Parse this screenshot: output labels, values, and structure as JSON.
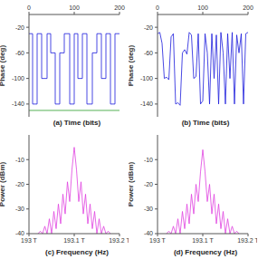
{
  "chart_data": [
    {
      "type": "step",
      "x_label": "(a) Time (bits)",
      "y_label": "Phase (deg)",
      "xlim": [
        0,
        200
      ],
      "xticks": [
        0,
        100,
        200
      ],
      "ylim": [
        -160,
        0
      ],
      "yticks": [
        -20,
        -60,
        -100,
        -140
      ],
      "x": [
        0,
        8,
        18,
        28,
        40,
        48,
        58,
        68,
        78,
        90,
        100,
        108,
        118,
        128,
        140,
        150,
        160,
        170,
        180,
        190,
        200
      ],
      "series": [
        {
          "color": "#1a1adc",
          "values": [
            -30,
            -140,
            -30,
            -100,
            -30,
            -60,
            -140,
            -60,
            -30,
            -140,
            -30,
            -100,
            -30,
            -140,
            -60,
            -30,
            -100,
            -30,
            -140,
            -30,
            -30
          ]
        },
        {
          "color": "#2a9d2a",
          "values": [
            -150,
            -150,
            -150,
            -150,
            -150,
            -150,
            -150,
            -150,
            -150,
            -150,
            -150,
            -150,
            -150,
            -150,
            -150,
            -150,
            -150,
            -150,
            -150,
            -150,
            -150
          ]
        }
      ]
    },
    {
      "type": "line",
      "x_label": "(b) Time (bits)",
      "y_label": "Phase (deg)",
      "xlim": [
        0,
        200
      ],
      "xticks": [
        0,
        100,
        200
      ],
      "ylim": [
        -160,
        0
      ],
      "yticks": [
        -20,
        -60,
        -100,
        -140
      ],
      "x": [
        0,
        5,
        10,
        15,
        20,
        25,
        30,
        35,
        40,
        45,
        50,
        55,
        60,
        65,
        70,
        75,
        80,
        85,
        90,
        95,
        100,
        105,
        110,
        115,
        120,
        125,
        130,
        135,
        140,
        145,
        150,
        155,
        160,
        165,
        170,
        175,
        180,
        185,
        190,
        195,
        200
      ],
      "series": [
        {
          "color": "#1a1adc",
          "values": [
            -30,
            -28,
            -45,
            -100,
            -98,
            -102,
            -35,
            -30,
            -140,
            -138,
            -142,
            -60,
            -55,
            -62,
            -28,
            -32,
            -100,
            -97,
            -30,
            -140,
            -135,
            -30,
            -60,
            -140,
            -30,
            -100,
            -32,
            -140,
            -28,
            -60,
            -140,
            -30,
            -100,
            -28,
            -140,
            -32,
            -60,
            -30,
            -140,
            -30,
            -28
          ]
        }
      ]
    },
    {
      "type": "line",
      "x_label": "(c) Frequency (Hz)",
      "y_label": "Power (dBm)",
      "xlim": [
        193000000000000,
        193200000000000
      ],
      "xticks": [
        {
          "value": 193000000000000,
          "label": "193 T"
        },
        {
          "value": 193100000000000,
          "label": "193.1 T"
        },
        {
          "value": 193200000000000,
          "label": "193.2 T"
        }
      ],
      "ylim": [
        -40,
        0
      ],
      "yticks": [
        -40,
        -30,
        -20,
        -10
      ],
      "x": [
        193020000000000,
        193025000000000,
        193030000000000,
        193035000000000,
        193040000000000,
        193045000000000,
        193050000000000,
        193055000000000,
        193060000000000,
        193065000000000,
        193070000000000,
        193075000000000,
        193080000000000,
        193085000000000,
        193090000000000,
        193095000000000,
        193100000000000,
        193105000000000,
        193110000000000,
        193115000000000,
        193120000000000,
        193125000000000,
        193130000000000,
        193135000000000,
        193140000000000,
        193145000000000,
        193150000000000,
        193155000000000,
        193160000000000,
        193165000000000,
        193170000000000,
        193175000000000,
        193180000000000
      ],
      "series": [
        {
          "color": "#e040e0",
          "values": [
            -40,
            -39,
            -40,
            -37,
            -40,
            -34,
            -40,
            -31,
            -38,
            -28,
            -36,
            -24,
            -32,
            -19,
            -27,
            -14,
            -5,
            -14,
            -27,
            -19,
            -32,
            -24,
            -36,
            -28,
            -38,
            -31,
            -40,
            -34,
            -40,
            -37,
            -40,
            -39,
            -40
          ]
        }
      ]
    },
    {
      "type": "line",
      "x_label": "(d) Frequency (Hz)",
      "y_label": "Power (dBm)",
      "xlim": [
        193000000000000,
        193200000000000
      ],
      "xticks": [
        {
          "value": 193000000000000,
          "label": "193 T"
        },
        {
          "value": 193100000000000,
          "label": "193.1 T"
        },
        {
          "value": 193200000000000,
          "label": "193.2 T"
        }
      ],
      "ylim": [
        -40,
        0
      ],
      "yticks": [
        -40,
        -30,
        -20,
        -10
      ],
      "x": [
        193020000000000,
        193025000000000,
        193030000000000,
        193035000000000,
        193040000000000,
        193045000000000,
        193050000000000,
        193055000000000,
        193060000000000,
        193065000000000,
        193070000000000,
        193075000000000,
        193080000000000,
        193085000000000,
        193090000000000,
        193095000000000,
        193100000000000,
        193105000000000,
        193110000000000,
        193115000000000,
        193120000000000,
        193125000000000,
        193130000000000,
        193135000000000,
        193140000000000,
        193145000000000,
        193150000000000,
        193155000000000,
        193160000000000,
        193165000000000,
        193170000000000,
        193175000000000,
        193180000000000
      ],
      "series": [
        {
          "color": "#e040e0",
          "values": [
            -40,
            -39,
            -40,
            -37,
            -40,
            -34,
            -40,
            -31,
            -38,
            -28,
            -36,
            -24,
            -32,
            -20,
            -27,
            -15,
            -6,
            -15,
            -27,
            -20,
            -32,
            -24,
            -36,
            -28,
            -38,
            -31,
            -40,
            -34,
            -40,
            -37,
            -40,
            -39,
            -40
          ]
        }
      ]
    }
  ]
}
